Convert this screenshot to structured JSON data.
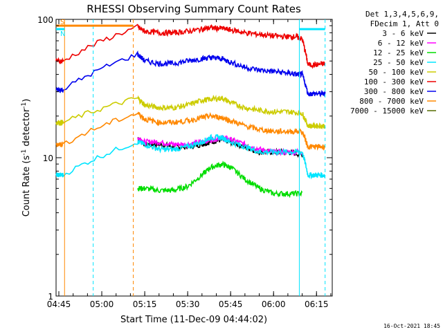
{
  "chart_data": {
    "type": "line",
    "title": "RHESSI Observing Summary Count Rates",
    "xlabel": "Start Time (11-Dec-09 04:44:02)",
    "ylabel": "Count Rate (s^-1 detector^-1)",
    "ylabel_parts": {
      "main": "Count Rate (s",
      "sup": "-1",
      "mid": " detector",
      "sup2": "-1",
      "end": ")"
    },
    "y_scale": "log",
    "ylim": [
      1,
      100
    ],
    "y_ticks": [
      {
        "value": 1,
        "label": "1"
      },
      {
        "value": 10,
        "label": "10"
      },
      {
        "value": 100,
        "label": "100"
      }
    ],
    "xlim": [
      "04:44:02",
      "06:20:30"
    ],
    "x_ticks": [
      "04:45",
      "05:00",
      "05:15",
      "05:30",
      "05:45",
      "06:00",
      "06:15"
    ],
    "legend_header": [
      "Det 1,3,4,5,6,9,",
      "FDecim 1, Att 0"
    ],
    "legend_placement": "right",
    "timestamp": "16-Oct-2021 18:45",
    "flags": [
      {
        "label": "S",
        "color": "#ff8800",
        "start": "04:44:02",
        "end": "05:11:00",
        "level": 90
      },
      {
        "label": "N",
        "color": "#00e5ff",
        "start": "04:44:02",
        "end": "04:47:00",
        "level": 85
      },
      {
        "label": "",
        "color": "#00e5ff",
        "start": "06:09:00",
        "end": "06:18:00",
        "level": 85
      }
    ],
    "markers": [
      {
        "time": "04:47:00",
        "color": "#ff8800",
        "style": "solid"
      },
      {
        "time": "04:57:00",
        "color": "#00e5ff",
        "style": "dashed"
      },
      {
        "time": "05:11:00",
        "color": "#ff8800",
        "style": "dashed"
      },
      {
        "time": "06:09:00",
        "color": "#00e5ff",
        "style": "solid"
      },
      {
        "time": "06:18:00",
        "color": "#00e5ff",
        "style": "dashed"
      }
    ],
    "series": [
      {
        "name": "3 - 6 keV",
        "color": "#000000",
        "x": [
          "04:44:02",
          "04:46:30",
          "05:12:30",
          "05:15",
          "05:20",
          "05:25",
          "05:30",
          "05:35",
          "05:38",
          "05:42",
          "05:45",
          "05:50",
          "05:55",
          "06:00",
          "06:05",
          "06:10"
        ],
        "y": [
          null,
          null,
          14,
          12.5,
          12.5,
          12,
          12,
          12.5,
          13,
          13.5,
          13,
          12,
          11,
          11,
          11,
          10.5
        ]
      },
      {
        "name": "6 - 12 keV",
        "color": "#ff00ff",
        "x": [
          "04:44:02",
          "04:46:30",
          "05:12:30",
          "05:15",
          "05:20",
          "05:25",
          "05:30",
          "05:35",
          "05:38",
          "05:42",
          "05:45",
          "05:50",
          "05:55",
          "06:00",
          "06:05",
          "06:10"
        ],
        "y": [
          null,
          null,
          14,
          13,
          13,
          12.5,
          12.5,
          13,
          13.5,
          14,
          13.5,
          12.5,
          11.5,
          11,
          11,
          11
        ]
      },
      {
        "name": "12 - 25 keV",
        "color": "#00dd00",
        "x": [
          "04:44:02",
          "04:46:30",
          "05:12:30",
          "05:15",
          "05:20",
          "05:25",
          "05:30",
          "05:35",
          "05:38",
          "05:42",
          "05:45",
          "05:50",
          "05:55",
          "06:00",
          "06:05",
          "06:10"
        ],
        "y": [
          null,
          null,
          6,
          6,
          5.8,
          5.8,
          6.2,
          7.5,
          8.5,
          9,
          8.5,
          7,
          6,
          5.5,
          5.5,
          5.5
        ]
      },
      {
        "name": "25 - 50 keV",
        "color": "#00e5ff",
        "x": [
          "04:44:02",
          "04:46:30",
          "05:12:30",
          "05:15",
          "05:20",
          "05:25",
          "05:30",
          "05:35",
          "05:38",
          "05:42",
          "05:45",
          "05:50",
          "05:55",
          "06:00",
          "06:05",
          "06:10",
          "06:12",
          "06:15",
          "06:18"
        ],
        "y": [
          7.5,
          7.5,
          13,
          12.5,
          11.5,
          11.5,
          12,
          13,
          14,
          14,
          13,
          12,
          11,
          11,
          11,
          11,
          7.5,
          7.5,
          7.5
        ]
      },
      {
        "name": "50 - 100 keV",
        "color": "#cccc00",
        "x": [
          "04:44:02",
          "04:46:30",
          "05:12:30",
          "05:15",
          "05:20",
          "05:25",
          "05:30",
          "05:35",
          "05:38",
          "05:42",
          "05:45",
          "05:50",
          "05:55",
          "06:00",
          "06:05",
          "06:10",
          "06:12",
          "06:15",
          "06:18"
        ],
        "y": [
          18,
          18,
          27,
          24,
          23,
          23,
          24,
          26,
          26.5,
          27,
          25,
          23,
          22,
          21.5,
          21.5,
          21,
          17,
          17,
          17
        ]
      },
      {
        "name": "100 - 300 keV",
        "color": "#ee0000",
        "x": [
          "04:44:02",
          "04:46:30",
          "05:12:30",
          "05:15",
          "05:20",
          "05:25",
          "05:30",
          "05:35",
          "05:38",
          "05:42",
          "05:45",
          "05:50",
          "05:55",
          "06:00",
          "06:05",
          "06:08",
          "06:10",
          "06:12",
          "06:15",
          "06:18"
        ],
        "y": [
          50,
          50,
          88,
          82,
          80,
          80,
          82,
          85,
          87,
          86,
          84,
          80,
          78,
          76,
          75,
          75,
          72,
          47,
          47,
          48
        ]
      },
      {
        "name": "300 - 800 keV",
        "color": "#0000ee",
        "x": [
          "04:44:02",
          "04:46:30",
          "05:12:30",
          "05:15",
          "05:20",
          "05:25",
          "05:30",
          "05:35",
          "05:38",
          "05:42",
          "05:45",
          "05:50",
          "05:55",
          "06:00",
          "06:05",
          "06:08",
          "06:10",
          "06:12",
          "06:15",
          "06:18"
        ],
        "y": [
          31,
          31,
          56,
          50,
          48,
          48,
          50,
          52,
          53,
          52,
          49,
          45,
          43,
          42,
          41,
          40,
          40,
          29,
          29,
          29
        ]
      },
      {
        "name": "800 - 7000 keV",
        "color": "#ff8800",
        "x": [
          "04:44:02",
          "04:46:30",
          "05:12:30",
          "05:15",
          "05:20",
          "05:25",
          "05:30",
          "05:35",
          "05:38",
          "05:42",
          "05:45",
          "05:50",
          "05:55",
          "06:00",
          "06:05",
          "06:10",
          "06:12",
          "06:15",
          "06:18"
        ],
        "y": [
          12.5,
          12.5,
          21,
          19,
          18,
          18,
          18.5,
          19.5,
          20,
          19.5,
          18.5,
          17,
          16,
          15.5,
          15.5,
          15.5,
          12,
          12,
          12
        ]
      },
      {
        "name": "7000 - 15000 keV",
        "color": "#556b00",
        "x": [],
        "y": []
      }
    ]
  }
}
